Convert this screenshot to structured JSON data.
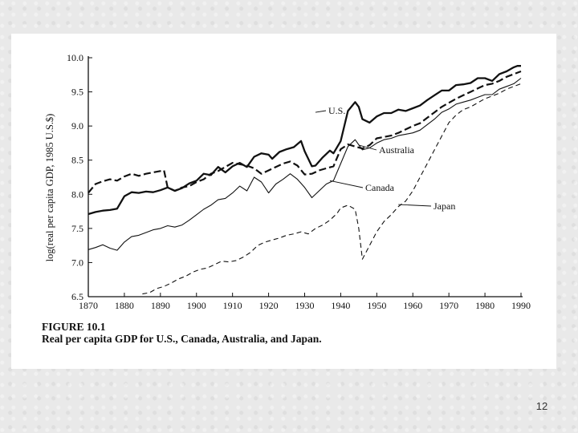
{
  "slide": {
    "number": "12"
  },
  "figure": {
    "caption_label": "FIGURE 10.1",
    "caption_text": "Real per capita GDP for U.S., Canada, Australia, and Japan."
  },
  "chart_data": {
    "type": "line",
    "title": "",
    "ylabel": "log(real per capita GDP, 1985 U.S.$)",
    "xlabel": "",
    "xlim": [
      1870,
      1990
    ],
    "ylim": [
      6.5,
      10.0
    ],
    "x_ticks": [
      1870,
      1880,
      1890,
      1900,
      1910,
      1920,
      1930,
      1940,
      1950,
      1960,
      1970,
      1980,
      1990
    ],
    "y_ticks": [
      6.5,
      7.0,
      7.5,
      8.0,
      8.5,
      9.0,
      9.5,
      10.0
    ],
    "y_tick_labels": [
      "6.5",
      "7.0",
      "7.5",
      "8.0",
      "8.5",
      "9.0",
      "9.5",
      "10.0"
    ],
    "grid": false,
    "legend": "inline labels",
    "series": [
      {
        "name": "U.S.",
        "style": "solid-thick",
        "x": [
          1870,
          1872,
          1874,
          1876,
          1878,
          1880,
          1882,
          1884,
          1886,
          1888,
          1890,
          1892,
          1894,
          1896,
          1898,
          1900,
          1902,
          1904,
          1906,
          1908,
          1910,
          1912,
          1914,
          1916,
          1918,
          1920,
          1921,
          1923,
          1925,
          1927,
          1929,
          1930,
          1932,
          1933,
          1935,
          1937,
          1938,
          1940,
          1942,
          1944,
          1945,
          1946,
          1948,
          1950,
          1952,
          1954,
          1956,
          1958,
          1960,
          1962,
          1964,
          1966,
          1968,
          1970,
          1972,
          1974,
          1976,
          1978,
          1980,
          1982,
          1984,
          1986,
          1988,
          1989,
          1990
        ],
        "y": [
          7.71,
          7.74,
          7.76,
          7.77,
          7.79,
          7.97,
          8.03,
          8.02,
          8.04,
          8.03,
          8.06,
          8.1,
          8.05,
          8.09,
          8.16,
          8.2,
          8.3,
          8.28,
          8.4,
          8.32,
          8.41,
          8.46,
          8.4,
          8.55,
          8.6,
          8.58,
          8.52,
          8.62,
          8.66,
          8.69,
          8.78,
          8.63,
          8.41,
          8.42,
          8.54,
          8.64,
          8.6,
          8.78,
          9.22,
          9.35,
          9.28,
          9.1,
          9.05,
          9.14,
          9.19,
          9.19,
          9.24,
          9.22,
          9.26,
          9.3,
          9.38,
          9.45,
          9.52,
          9.52,
          9.6,
          9.61,
          9.63,
          9.7,
          9.7,
          9.66,
          9.76,
          9.8,
          9.86,
          9.88,
          9.88
        ]
      },
      {
        "name": "Australia",
        "style": "dashed-thick",
        "x": [
          1870,
          1872,
          1874,
          1876,
          1878,
          1880,
          1882,
          1884,
          1886,
          1888,
          1890,
          1891,
          1892,
          1894,
          1896,
          1898,
          1900,
          1902,
          1904,
          1906,
          1908,
          1910,
          1912,
          1914,
          1916,
          1918,
          1920,
          1922,
          1924,
          1926,
          1928,
          1930,
          1932,
          1934,
          1936,
          1938,
          1940,
          1942,
          1944,
          1946,
          1948,
          1950,
          1952,
          1954,
          1956,
          1958,
          1960,
          1962,
          1964,
          1966,
          1968,
          1970,
          1972,
          1974,
          1976,
          1978,
          1980,
          1982,
          1984,
          1986,
          1988,
          1990
        ],
        "y": [
          8.02,
          8.15,
          8.19,
          8.22,
          8.2,
          8.26,
          8.3,
          8.27,
          8.3,
          8.32,
          8.34,
          8.35,
          8.1,
          8.05,
          8.1,
          8.12,
          8.18,
          8.22,
          8.3,
          8.34,
          8.4,
          8.46,
          8.44,
          8.42,
          8.38,
          8.3,
          8.35,
          8.4,
          8.45,
          8.48,
          8.42,
          8.29,
          8.3,
          8.35,
          8.38,
          8.41,
          8.66,
          8.73,
          8.7,
          8.67,
          8.72,
          8.82,
          8.84,
          8.86,
          8.9,
          8.95,
          9.0,
          9.04,
          9.12,
          9.2,
          9.28,
          9.34,
          9.4,
          9.45,
          9.5,
          9.55,
          9.6,
          9.62,
          9.66,
          9.72,
          9.76,
          9.8
        ]
      },
      {
        "name": "Canada",
        "style": "solid-thin",
        "x": [
          1870,
          1872,
          1874,
          1876,
          1878,
          1880,
          1882,
          1884,
          1886,
          1888,
          1890,
          1892,
          1894,
          1896,
          1898,
          1900,
          1902,
          1904,
          1906,
          1908,
          1910,
          1912,
          1914,
          1916,
          1918,
          1920,
          1922,
          1924,
          1926,
          1928,
          1930,
          1932,
          1934,
          1936,
          1938,
          1940,
          1942,
          1944,
          1946,
          1948,
          1950,
          1952,
          1954,
          1956,
          1958,
          1960,
          1962,
          1964,
          1966,
          1968,
          1970,
          1972,
          1974,
          1976,
          1978,
          1980,
          1982,
          1984,
          1986,
          1988,
          1990
        ],
        "y": [
          7.19,
          7.22,
          7.26,
          7.21,
          7.18,
          7.3,
          7.38,
          7.4,
          7.44,
          7.48,
          7.5,
          7.54,
          7.52,
          7.55,
          7.62,
          7.7,
          7.78,
          7.84,
          7.92,
          7.94,
          8.02,
          8.12,
          8.05,
          8.25,
          8.18,
          8.02,
          8.15,
          8.22,
          8.3,
          8.22,
          8.1,
          7.95,
          8.05,
          8.15,
          8.2,
          8.45,
          8.7,
          8.8,
          8.65,
          8.68,
          8.75,
          8.8,
          8.82,
          8.86,
          8.88,
          8.9,
          8.94,
          9.02,
          9.1,
          9.2,
          9.25,
          9.32,
          9.35,
          9.38,
          9.42,
          9.46,
          9.46,
          9.54,
          9.58,
          9.62,
          9.7
        ]
      },
      {
        "name": "Japan",
        "style": "dashed-thin",
        "x": [
          1885,
          1887,
          1889,
          1891,
          1893,
          1895,
          1897,
          1899,
          1901,
          1903,
          1905,
          1907,
          1909,
          1911,
          1913,
          1915,
          1917,
          1919,
          1921,
          1923,
          1925,
          1927,
          1929,
          1931,
          1933,
          1935,
          1937,
          1939,
          1940,
          1942,
          1944,
          1945,
          1946,
          1948,
          1950,
          1952,
          1954,
          1956,
          1958,
          1960,
          1962,
          1964,
          1966,
          1968,
          1970,
          1972,
          1974,
          1976,
          1978,
          1980,
          1982,
          1984,
          1986,
          1988,
          1990
        ],
        "y": [
          6.54,
          6.56,
          6.62,
          6.65,
          6.7,
          6.76,
          6.8,
          6.86,
          6.9,
          6.92,
          6.97,
          7.02,
          7.01,
          7.03,
          7.08,
          7.15,
          7.25,
          7.3,
          7.33,
          7.36,
          7.4,
          7.42,
          7.45,
          7.42,
          7.5,
          7.55,
          7.62,
          7.72,
          7.8,
          7.84,
          7.78,
          7.5,
          7.05,
          7.25,
          7.45,
          7.6,
          7.7,
          7.82,
          7.9,
          8.05,
          8.25,
          8.45,
          8.65,
          8.85,
          9.05,
          9.16,
          9.24,
          9.28,
          9.34,
          9.4,
          9.44,
          9.48,
          9.54,
          9.58,
          9.62
        ]
      }
    ],
    "annotations": [
      "U.S.",
      "Australia",
      "Canada",
      "Japan"
    ]
  }
}
